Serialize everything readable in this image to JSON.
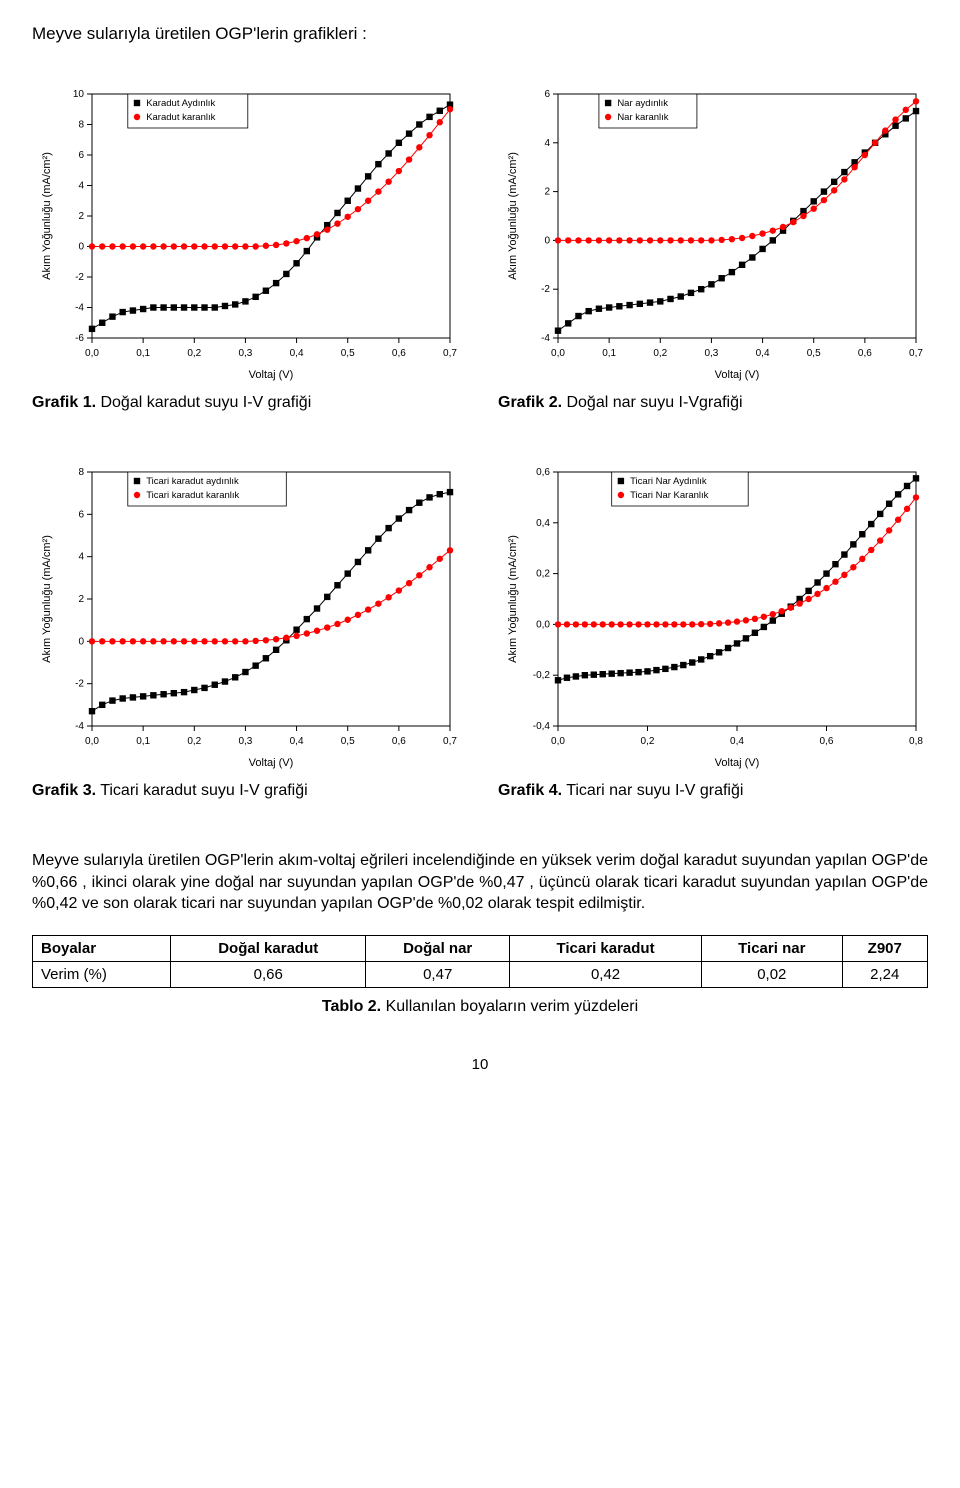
{
  "page": {
    "title": "Meyve sularıyla üretilen OGP'lerin grafikleri :",
    "number": "10"
  },
  "charts": {
    "c1": {
      "ylabel": "Akım Yoğunluğu (mA/cm²)",
      "xlabel": "Voltaj (V)",
      "xlim": [
        0.0,
        0.7
      ],
      "xtick_step": 0.1,
      "ylim": [
        -6,
        10
      ],
      "ytick_step": 2,
      "xticks": [
        "0,0",
        "0,1",
        "0,2",
        "0,3",
        "0,4",
        "0,5",
        "0,6",
        "0,7"
      ],
      "yticks": [
        "-6",
        "-4",
        "-2",
        "0",
        "2",
        "4",
        "6",
        "8",
        "10"
      ],
      "background_color": "#ffffff",
      "axis_color": "#000000",
      "axis_fontsize": 10,
      "label_fontsize": 11,
      "marker_size": 3.2,
      "series": [
        {
          "name": "Karadut Aydınlık",
          "color": "#000000",
          "marker": "square",
          "x": [
            0.0,
            0.02,
            0.04,
            0.06,
            0.08,
            0.1,
            0.12,
            0.14,
            0.16,
            0.18,
            0.2,
            0.22,
            0.24,
            0.26,
            0.28,
            0.3,
            0.32,
            0.34,
            0.36,
            0.38,
            0.4,
            0.42,
            0.44,
            0.46,
            0.48,
            0.5,
            0.52,
            0.54,
            0.56,
            0.58,
            0.6,
            0.62,
            0.64,
            0.66,
            0.68,
            0.7
          ],
          "y": [
            -5.4,
            -5.0,
            -4.6,
            -4.3,
            -4.2,
            -4.1,
            -4.0,
            -4.0,
            -4.0,
            -4.0,
            -4.0,
            -4.0,
            -4.0,
            -3.9,
            -3.8,
            -3.6,
            -3.3,
            -2.9,
            -2.4,
            -1.8,
            -1.1,
            -0.3,
            0.6,
            1.4,
            2.2,
            3.0,
            3.8,
            4.6,
            5.4,
            6.1,
            6.8,
            7.4,
            8.0,
            8.5,
            8.9,
            9.3
          ]
        },
        {
          "name": "Karadut karanlık",
          "color": "#ff0000",
          "marker": "circle",
          "x": [
            0.0,
            0.02,
            0.04,
            0.06,
            0.08,
            0.1,
            0.12,
            0.14,
            0.16,
            0.18,
            0.2,
            0.22,
            0.24,
            0.26,
            0.28,
            0.3,
            0.32,
            0.34,
            0.36,
            0.38,
            0.4,
            0.42,
            0.44,
            0.46,
            0.48,
            0.5,
            0.52,
            0.54,
            0.56,
            0.58,
            0.6,
            0.62,
            0.64,
            0.66,
            0.68,
            0.7
          ],
          "y": [
            0.0,
            0.0,
            0.0,
            0.0,
            0.0,
            0.0,
            0.0,
            0.0,
            0.0,
            0.0,
            0.0,
            0.0,
            0.0,
            0.0,
            0.0,
            0.0,
            0.0,
            0.05,
            0.1,
            0.2,
            0.35,
            0.55,
            0.8,
            1.1,
            1.5,
            1.95,
            2.45,
            3.0,
            3.6,
            4.25,
            4.95,
            5.7,
            6.5,
            7.3,
            8.15,
            9.0
          ]
        }
      ],
      "legend": {
        "x": 0.07,
        "y_top": 10,
        "entries": [
          "Karadut Aydınlık",
          "Karadut karanlık"
        ]
      }
    },
    "c2": {
      "ylabel": "Akım Yoğunluğu (mA/cm²)",
      "xlabel": "Voltaj (V)",
      "xlim": [
        0.0,
        0.7
      ],
      "xtick_step": 0.1,
      "ylim": [
        -4,
        6
      ],
      "ytick_step": 2,
      "xticks": [
        "0,0",
        "0,1",
        "0,2",
        "0,3",
        "0,4",
        "0,5",
        "0,6",
        "0,7"
      ],
      "yticks": [
        "-4",
        "-2",
        "0",
        "2",
        "4",
        "6"
      ],
      "background_color": "#ffffff",
      "axis_color": "#000000",
      "axis_fontsize": 10,
      "label_fontsize": 11,
      "marker_size": 3.2,
      "series": [
        {
          "name": "Nar aydınlık",
          "color": "#000000",
          "marker": "square",
          "x": [
            0.0,
            0.02,
            0.04,
            0.06,
            0.08,
            0.1,
            0.12,
            0.14,
            0.16,
            0.18,
            0.2,
            0.22,
            0.24,
            0.26,
            0.28,
            0.3,
            0.32,
            0.34,
            0.36,
            0.38,
            0.4,
            0.42,
            0.44,
            0.46,
            0.48,
            0.5,
            0.52,
            0.54,
            0.56,
            0.58,
            0.6,
            0.62,
            0.64,
            0.66,
            0.68,
            0.7
          ],
          "y": [
            -3.7,
            -3.4,
            -3.1,
            -2.9,
            -2.8,
            -2.75,
            -2.7,
            -2.65,
            -2.6,
            -2.55,
            -2.5,
            -2.4,
            -2.3,
            -2.15,
            -2.0,
            -1.8,
            -1.55,
            -1.3,
            -1.0,
            -0.7,
            -0.35,
            0.0,
            0.4,
            0.8,
            1.2,
            1.6,
            2.0,
            2.4,
            2.8,
            3.2,
            3.6,
            4.0,
            4.35,
            4.7,
            5.0,
            5.3
          ]
        },
        {
          "name": "Nar karanlık",
          "color": "#ff0000",
          "marker": "circle",
          "x": [
            0.0,
            0.02,
            0.04,
            0.06,
            0.08,
            0.1,
            0.12,
            0.14,
            0.16,
            0.18,
            0.2,
            0.22,
            0.24,
            0.26,
            0.28,
            0.3,
            0.32,
            0.34,
            0.36,
            0.38,
            0.4,
            0.42,
            0.44,
            0.46,
            0.48,
            0.5,
            0.52,
            0.54,
            0.56,
            0.58,
            0.6,
            0.62,
            0.64,
            0.66,
            0.68,
            0.7
          ],
          "y": [
            0.0,
            0.0,
            0.0,
            0.0,
            0.0,
            0.0,
            0.0,
            0.0,
            0.0,
            0.0,
            0.0,
            0.0,
            0.0,
            0.0,
            0.0,
            0.0,
            0.02,
            0.05,
            0.1,
            0.18,
            0.28,
            0.4,
            0.55,
            0.75,
            1.0,
            1.3,
            1.65,
            2.05,
            2.5,
            3.0,
            3.5,
            4.0,
            4.5,
            4.95,
            5.35,
            5.7
          ]
        }
      ],
      "legend": {
        "x": 0.08,
        "y_top": 6,
        "entries": [
          "Nar aydınlık",
          "Nar karanlık"
        ]
      }
    },
    "c3": {
      "ylabel": "Akım Yoğunluğu (mA/cm²)",
      "xlabel": "Voltaj (V)",
      "xlim": [
        0.0,
        0.7
      ],
      "xtick_step": 0.1,
      "ylim": [
        -4,
        8
      ],
      "ytick_step": 2,
      "xticks": [
        "0,0",
        "0,1",
        "0,2",
        "0,3",
        "0,4",
        "0,5",
        "0,6",
        "0,7"
      ],
      "yticks": [
        "-4",
        "-2",
        "0",
        "2",
        "4",
        "6",
        "8"
      ],
      "background_color": "#ffffff",
      "axis_color": "#000000",
      "axis_fontsize": 10,
      "label_fontsize": 11,
      "marker_size": 3.2,
      "series": [
        {
          "name": "Ticari karadut aydınlık",
          "color": "#000000",
          "marker": "square",
          "x": [
            0.0,
            0.02,
            0.04,
            0.06,
            0.08,
            0.1,
            0.12,
            0.14,
            0.16,
            0.18,
            0.2,
            0.22,
            0.24,
            0.26,
            0.28,
            0.3,
            0.32,
            0.34,
            0.36,
            0.38,
            0.4,
            0.42,
            0.44,
            0.46,
            0.48,
            0.5,
            0.52,
            0.54,
            0.56,
            0.58,
            0.6,
            0.62,
            0.64,
            0.66,
            0.68,
            0.7
          ],
          "y": [
            -3.3,
            -3.0,
            -2.8,
            -2.7,
            -2.65,
            -2.6,
            -2.55,
            -2.5,
            -2.45,
            -2.4,
            -2.3,
            -2.2,
            -2.05,
            -1.9,
            -1.7,
            -1.45,
            -1.15,
            -0.8,
            -0.4,
            0.05,
            0.55,
            1.05,
            1.55,
            2.1,
            2.65,
            3.2,
            3.75,
            4.3,
            4.85,
            5.35,
            5.8,
            6.2,
            6.55,
            6.8,
            6.95,
            7.05
          ]
        },
        {
          "name": "Ticari karadut karanlık",
          "color": "#ff0000",
          "marker": "circle",
          "x": [
            0.0,
            0.02,
            0.04,
            0.06,
            0.08,
            0.1,
            0.12,
            0.14,
            0.16,
            0.18,
            0.2,
            0.22,
            0.24,
            0.26,
            0.28,
            0.3,
            0.32,
            0.34,
            0.36,
            0.38,
            0.4,
            0.42,
            0.44,
            0.46,
            0.48,
            0.5,
            0.52,
            0.54,
            0.56,
            0.58,
            0.6,
            0.62,
            0.64,
            0.66,
            0.68,
            0.7
          ],
          "y": [
            0.0,
            0.0,
            0.0,
            0.0,
            0.0,
            0.0,
            0.0,
            0.0,
            0.0,
            0.0,
            0.0,
            0.0,
            0.0,
            0.0,
            0.0,
            0.0,
            0.02,
            0.05,
            0.1,
            0.17,
            0.26,
            0.37,
            0.5,
            0.65,
            0.82,
            1.02,
            1.25,
            1.5,
            1.78,
            2.08,
            2.4,
            2.75,
            3.12,
            3.5,
            3.9,
            4.3
          ]
        }
      ],
      "legend": {
        "x": 0.07,
        "y_top": 8,
        "entries": [
          "Ticari karadut aydınlık",
          "Ticari karadut karanlık"
        ]
      }
    },
    "c4": {
      "ylabel": "Akım Yoğunluğu (mA/cm²)",
      "xlabel": "Voltaj (V)",
      "xlim": [
        0.0,
        0.8
      ],
      "xtick_step": 0.2,
      "ylim": [
        -0.4,
        0.6
      ],
      "ytick_step": 0.2,
      "xticks": [
        "0,0",
        "0,2",
        "0,4",
        "0,6",
        "0,8"
      ],
      "yticks": [
        "-0,4",
        "-0,2",
        "0,0",
        "0,2",
        "0,4",
        "0,6"
      ],
      "background_color": "#ffffff",
      "axis_color": "#000000",
      "axis_fontsize": 10,
      "label_fontsize": 11,
      "marker_size": 3.2,
      "series": [
        {
          "name": "Ticari Nar Aydınlık",
          "color": "#000000",
          "marker": "square",
          "x": [
            0.0,
            0.02,
            0.04,
            0.06,
            0.08,
            0.1,
            0.12,
            0.14,
            0.16,
            0.18,
            0.2,
            0.22,
            0.24,
            0.26,
            0.28,
            0.3,
            0.32,
            0.34,
            0.36,
            0.38,
            0.4,
            0.42,
            0.44,
            0.46,
            0.48,
            0.5,
            0.52,
            0.54,
            0.56,
            0.58,
            0.6,
            0.62,
            0.64,
            0.66,
            0.68,
            0.7,
            0.72,
            0.74,
            0.76,
            0.78,
            0.8
          ],
          "y": [
            -0.22,
            -0.21,
            -0.205,
            -0.2,
            -0.198,
            -0.196,
            -0.194,
            -0.192,
            -0.19,
            -0.188,
            -0.185,
            -0.18,
            -0.175,
            -0.168,
            -0.16,
            -0.15,
            -0.138,
            -0.125,
            -0.11,
            -0.093,
            -0.075,
            -0.055,
            -0.033,
            -0.01,
            0.015,
            0.042,
            0.07,
            0.1,
            0.132,
            0.165,
            0.2,
            0.237,
            0.275,
            0.315,
            0.355,
            0.395,
            0.435,
            0.475,
            0.512,
            0.545,
            0.575
          ]
        },
        {
          "name": "Ticari Nar Karanlık",
          "color": "#ff0000",
          "marker": "circle",
          "x": [
            0.0,
            0.02,
            0.04,
            0.06,
            0.08,
            0.1,
            0.12,
            0.14,
            0.16,
            0.18,
            0.2,
            0.22,
            0.24,
            0.26,
            0.28,
            0.3,
            0.32,
            0.34,
            0.36,
            0.38,
            0.4,
            0.42,
            0.44,
            0.46,
            0.48,
            0.5,
            0.52,
            0.54,
            0.56,
            0.58,
            0.6,
            0.62,
            0.64,
            0.66,
            0.68,
            0.7,
            0.72,
            0.74,
            0.76,
            0.78,
            0.8
          ],
          "y": [
            0.0,
            0.0,
            0.0,
            0.0,
            0.0,
            0.0,
            0.0,
            0.0,
            0.0,
            0.0,
            0.0,
            0.0,
            0.0,
            0.0,
            0.0,
            0.0,
            0.001,
            0.002,
            0.004,
            0.007,
            0.011,
            0.016,
            0.022,
            0.03,
            0.04,
            0.052,
            0.066,
            0.082,
            0.1,
            0.12,
            0.143,
            0.168,
            0.195,
            0.225,
            0.258,
            0.293,
            0.33,
            0.37,
            0.412,
            0.455,
            0.5
          ]
        }
      ],
      "legend": {
        "x": 0.12,
        "y_top": 0.6,
        "entries": [
          "Ticari Nar Aydınlık",
          "Ticari Nar Karanlık"
        ]
      }
    }
  },
  "captions": {
    "g1": {
      "bold": "Grafik 1.",
      "rest": " Doğal karadut suyu I-V grafiği"
    },
    "g2": {
      "bold": "Grafik 2.",
      "rest": " Doğal nar suyu I-Vgrafiği"
    },
    "g3": {
      "bold": "Grafik 3.",
      "rest": " Ticari karadut suyu I-V grafiği"
    },
    "g4": {
      "bold": "Grafik 4.",
      "rest": " Ticari nar suyu I-V grafiği"
    }
  },
  "paragraph": "Meyve sularıyla üretilen OGP'lerin akım-voltaj eğrileri incelendiğinde en yüksek verim doğal karadut suyundan yapılan OGP'de %0,66 , ikinci olarak yine doğal nar suyundan yapılan OGP'de %0,47 ,  üçüncü olarak ticari karadut suyundan yapılan OGP'de %0,42 ve son olarak ticari nar suyundan yapılan OGP'de %0,02 olarak tespit edilmiştir.",
  "table": {
    "columns": [
      "Boyalar",
      "Doğal karadut",
      "Doğal nar",
      "Ticari karadut",
      "Ticari nar",
      "Z907"
    ],
    "rows": [
      [
        "Verim (%)",
        "0,66",
        "0,47",
        "0,42",
        "0,02",
        "2,24"
      ]
    ]
  },
  "table_caption": {
    "bold": "Tablo 2.",
    "rest": " Kullanılan boyaların verim yüzdeleri"
  }
}
